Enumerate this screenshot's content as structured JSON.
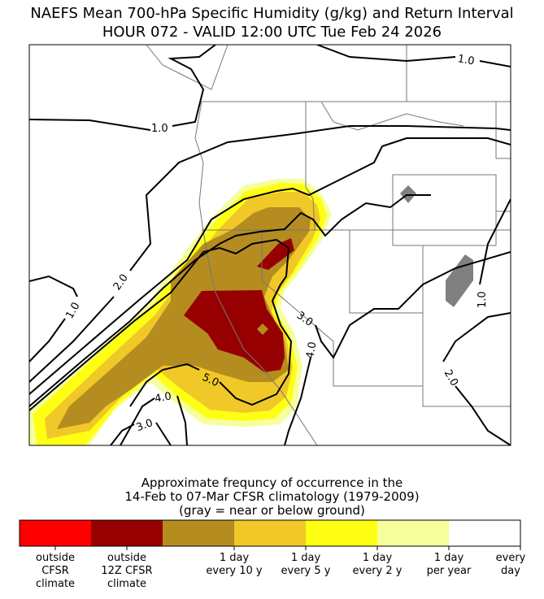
{
  "chart_data": {
    "type": "contour-map",
    "title": "NAEFS Mean 700-hPa Specific Humidity (g/kg) and Return Interval",
    "subtitle": "HOUR 072 - VALID 12:00 UTC Tue Feb 24 2026",
    "contour_variable": "700-hPa specific humidity (g/kg)",
    "contour_levels": [
      1.0,
      2.0,
      3.0,
      4.0,
      5.0
    ],
    "contour_labels": [
      {
        "text": "1.0",
        "place": "north-east"
      },
      {
        "text": "1.0",
        "place": "north-west"
      },
      {
        "text": "1.0",
        "place": "west"
      },
      {
        "text": "1.0",
        "place": "east"
      },
      {
        "text": "2.0",
        "place": "west"
      },
      {
        "text": "2.0",
        "place": "south-east"
      },
      {
        "text": "3.0",
        "place": "central"
      },
      {
        "text": "3.0",
        "place": "south"
      },
      {
        "text": "4.0",
        "place": "central"
      },
      {
        "text": "4.0",
        "place": "south"
      },
      {
        "text": "5.0",
        "place": "south-central"
      }
    ],
    "colorbar": {
      "title_lines": [
        "Approximate frequncy of occurrence in the",
        "14-Feb to 07-Mar CFSR climatology (1979-2009)",
        "(gray = near or below ground)"
      ],
      "colors": [
        "#ff0000",
        "#960000",
        "#b48c20",
        "#f0c828",
        "#ffff14",
        "#f5ff9b",
        "#ffffff"
      ],
      "ground_color": "#808080",
      "tick_labels": [
        [
          "outside",
          "CFSR",
          "climate"
        ],
        [
          "outside",
          "12Z CFSR",
          "climate"
        ],
        [
          "1 day",
          "every 10 y"
        ],
        [
          "1 day",
          "every 5 y"
        ],
        [
          "1 day",
          "every 2 y"
        ],
        [
          "1 day",
          "per year"
        ],
        [
          "every",
          "day"
        ]
      ]
    }
  }
}
